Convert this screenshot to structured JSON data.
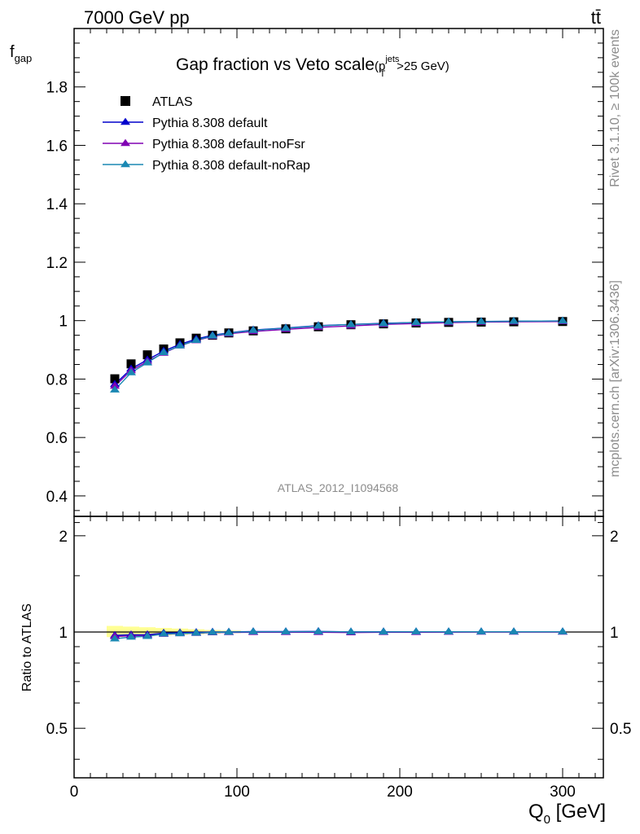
{
  "header": {
    "energy_label": "7000 GeV pp",
    "process_label": "tt̄"
  },
  "side_labels": {
    "rivet": "Rivet 3.1.10, ≥ 100k events",
    "mcplots": "mcplots.cern.ch [arXiv:1306.3436]"
  },
  "chart_data": {
    "type": "line",
    "title": "Gap fraction vs Veto scale",
    "title_suffix": "(p",
    "title_sup": "jets",
    "title_sub": "T",
    "title_tail": ">25 GeV)",
    "analysis_tag": "ATLAS_2012_I1094568",
    "xlabel": "Q",
    "xlabel_sub": "0",
    "xlabel_unit": " [GeV]",
    "ylabel": "f",
    "ylabel_sub": "gap",
    "ratio_ylabel": "Ratio to ATLAS",
    "xlim": [
      0,
      325
    ],
    "ylim": [
      0.33,
      2.0
    ],
    "ratio_ylim": [
      0.35,
      2.3
    ],
    "x_ticks": [
      "0",
      "100",
      "200",
      "300"
    ],
    "y_ticks": [
      "0.4",
      "0.6",
      "0.8",
      "1",
      "1.2",
      "1.4",
      "1.6",
      "1.8"
    ],
    "ratio_y_ticks": [
      "0.5",
      "1",
      "2"
    ],
    "legend_position": "top-left",
    "x": [
      25,
      35,
      45,
      55,
      65,
      75,
      85,
      95,
      110,
      130,
      150,
      170,
      190,
      210,
      230,
      250,
      270,
      300
    ],
    "data": {
      "name": "ATLAS",
      "color": "#000000",
      "values": [
        0.801,
        0.852,
        0.883,
        0.903,
        0.924,
        0.94,
        0.95,
        0.958,
        0.965,
        0.972,
        0.979,
        0.986,
        0.989,
        0.992,
        0.994,
        0.995,
        0.996,
        0.997
      ]
    },
    "series": [
      {
        "name": "Pythia 8.308 default",
        "color": "#0000cc",
        "values": [
          0.782,
          0.835,
          0.866,
          0.896,
          0.919,
          0.937,
          0.95,
          0.958,
          0.968,
          0.975,
          0.983,
          0.987,
          0.991,
          0.994,
          0.996,
          0.997,
          0.998,
          0.999
        ]
      },
      {
        "name": "Pythia 8.308 default-noFsr",
        "color": "#8000b3",
        "values": [
          0.776,
          0.829,
          0.86,
          0.889,
          0.914,
          0.932,
          0.946,
          0.955,
          0.963,
          0.97,
          0.977,
          0.982,
          0.987,
          0.99,
          0.993,
          0.995,
          0.996,
          0.997
        ]
      },
      {
        "name": "Pythia 8.308 default-noRap",
        "color": "#1a88b3",
        "values": [
          0.763,
          0.822,
          0.856,
          0.891,
          0.914,
          0.933,
          0.948,
          0.957,
          0.967,
          0.974,
          0.982,
          0.987,
          0.99,
          0.994,
          0.996,
          0.997,
          0.998,
          0.999
        ]
      }
    ]
  }
}
